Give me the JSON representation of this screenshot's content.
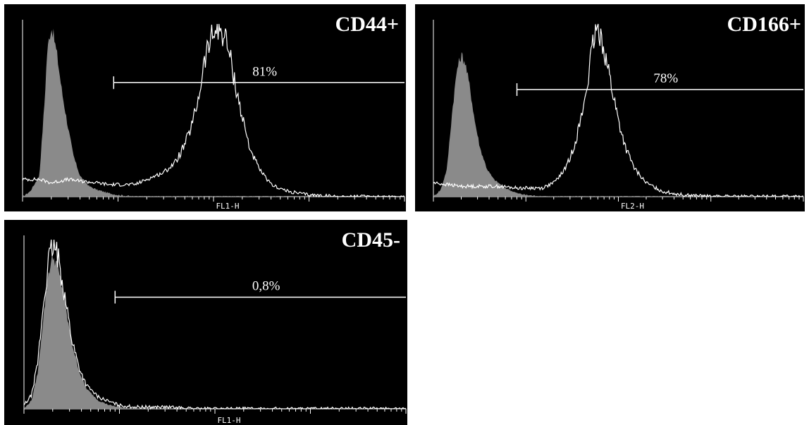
{
  "chart_data": [
    {
      "type": "area",
      "title": "CD44+",
      "xlabel": "FL1-H",
      "ylabel": "",
      "xscale": "log",
      "xlim": [
        1,
        10000
      ],
      "ylim": [
        0,
        100
      ],
      "gate": {
        "label": "81%",
        "start": 9,
        "end": 10000,
        "y": 66
      },
      "series": [
        {
          "role": "control",
          "color": "#8a8a8a",
          "points": [
            [
              1,
              0
            ],
            [
              1.2,
              3
            ],
            [
              1.5,
              12
            ],
            [
              1.7,
              55
            ],
            [
              1.8,
              82
            ],
            [
              1.9,
              92
            ],
            [
              2.0,
              98
            ],
            [
              2.1,
              94
            ],
            [
              2.3,
              82
            ],
            [
              2.6,
              60
            ],
            [
              3.0,
              40
            ],
            [
              3.4,
              24
            ],
            [
              4.0,
              12
            ],
            [
              5,
              6
            ],
            [
              6,
              4
            ],
            [
              8,
              2
            ],
            [
              10,
              1
            ],
            [
              15,
              0
            ]
          ]
        },
        {
          "role": "sample",
          "color": "#ffffff",
          "points": [
            [
              1,
              10
            ],
            [
              1.5,
              10
            ],
            [
              2,
              8
            ],
            [
              3,
              10
            ],
            [
              4,
              9
            ],
            [
              6,
              8
            ],
            [
              8,
              7
            ],
            [
              10,
              7
            ],
            [
              15,
              7
            ],
            [
              20,
              10
            ],
            [
              30,
              14
            ],
            [
              40,
              20
            ],
            [
              50,
              30
            ],
            [
              60,
              42
            ],
            [
              70,
              58
            ],
            [
              80,
              78
            ],
            [
              90,
              88
            ],
            [
              100,
              94
            ],
            [
              110,
              98
            ],
            [
              125,
              95
            ],
            [
              140,
              88
            ],
            [
              160,
              72
            ],
            [
              180,
              58
            ],
            [
              200,
              46
            ],
            [
              240,
              28
            ],
            [
              300,
              16
            ],
            [
              400,
              7
            ],
            [
              600,
              3
            ],
            [
              1000,
              1
            ],
            [
              2000,
              0
            ],
            [
              10000,
              0
            ]
          ]
        }
      ]
    },
    {
      "type": "area",
      "title": "CD166+",
      "xlabel": "FL2-H",
      "ylabel": "",
      "xscale": "log",
      "xlim": [
        1,
        10000
      ],
      "ylim": [
        0,
        100
      ],
      "gate": {
        "label": "78%",
        "start": 8,
        "end": 10000,
        "y": 62
      },
      "series": [
        {
          "role": "control",
          "color": "#8a8a8a",
          "points": [
            [
              1,
              0
            ],
            [
              1.2,
              4
            ],
            [
              1.4,
              16
            ],
            [
              1.6,
              50
            ],
            [
              1.8,
              74
            ],
            [
              2.0,
              82
            ],
            [
              2.2,
              78
            ],
            [
              2.5,
              62
            ],
            [
              2.8,
              44
            ],
            [
              3.2,
              28
            ],
            [
              3.8,
              16
            ],
            [
              4.5,
              10
            ],
            [
              6,
              5
            ],
            [
              8,
              2
            ],
            [
              10,
              1
            ],
            [
              15,
              0
            ]
          ]
        },
        {
          "role": "sample",
          "color": "#ffffff",
          "points": [
            [
              1,
              8
            ],
            [
              2,
              6
            ],
            [
              3,
              6
            ],
            [
              5,
              6
            ],
            [
              8,
              5
            ],
            [
              12,
              5
            ],
            [
              15,
              5
            ],
            [
              20,
              8
            ],
            [
              25,
              14
            ],
            [
              30,
              22
            ],
            [
              35,
              34
            ],
            [
              40,
              46
            ],
            [
              45,
              62
            ],
            [
              50,
              78
            ],
            [
              55,
              92
            ],
            [
              60,
              98
            ],
            [
              65,
              94
            ],
            [
              70,
              86
            ],
            [
              80,
              70
            ],
            [
              90,
              56
            ],
            [
              100,
              44
            ],
            [
              120,
              28
            ],
            [
              150,
              16
            ],
            [
              200,
              8
            ],
            [
              300,
              3
            ],
            [
              500,
              1
            ],
            [
              1000,
              0
            ],
            [
              10000,
              0
            ]
          ]
        }
      ]
    },
    {
      "type": "area",
      "title": "CD45-",
      "xlabel": "FL1-H",
      "ylabel": "",
      "xscale": "log",
      "xlim": [
        1,
        10000
      ],
      "ylim": [
        0,
        100
      ],
      "gate": {
        "label": "0,8%",
        "start": 9,
        "end": 10000,
        "y": 66
      },
      "series": [
        {
          "role": "control",
          "color": "#8a8a8a",
          "points": [
            [
              1,
              0
            ],
            [
              1.2,
              5
            ],
            [
              1.4,
              22
            ],
            [
              1.6,
              55
            ],
            [
              1.8,
              80
            ],
            [
              2.0,
              90
            ],
            [
              2.2,
              86
            ],
            [
              2.5,
              72
            ],
            [
              2.8,
              56
            ],
            [
              3.2,
              38
            ],
            [
              3.8,
              22
            ],
            [
              4.5,
              12
            ],
            [
              6,
              5
            ],
            [
              8,
              2
            ],
            [
              10,
              1
            ],
            [
              15,
              0
            ]
          ]
        },
        {
          "role": "sample",
          "color": "#ffffff",
          "points": [
            [
              1,
              2
            ],
            [
              1.2,
              8
            ],
            [
              1.4,
              28
            ],
            [
              1.6,
              62
            ],
            [
              1.8,
              86
            ],
            [
              2.0,
              96
            ],
            [
              2.2,
              92
            ],
            [
              2.5,
              78
            ],
            [
              2.8,
              60
            ],
            [
              3.2,
              40
            ],
            [
              3.8,
              24
            ],
            [
              4.5,
              14
            ],
            [
              6,
              7
            ],
            [
              8,
              4
            ],
            [
              10,
              2
            ],
            [
              15,
              1
            ],
            [
              30,
              1
            ],
            [
              60,
              0
            ],
            [
              10000,
              0
            ]
          ]
        }
      ]
    }
  ]
}
